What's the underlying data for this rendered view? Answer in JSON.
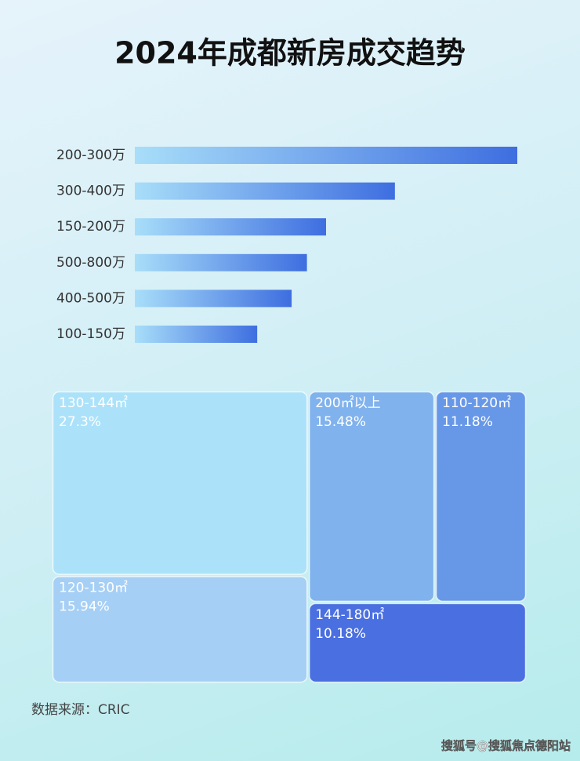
{
  "chart_data": [
    {
      "type": "bar",
      "orientation": "horizontal",
      "title": "2024年成都新房成交趋势",
      "categories": [
        "200-300万",
        "300-400万",
        "150-200万",
        "500-800万",
        "400-500万",
        "100-150万"
      ],
      "values": [
        100,
        68,
        50,
        45,
        41,
        32
      ],
      "color": [
        "#a8def9",
        "#3e6ee0"
      ]
    },
    {
      "type": "treemap",
      "categories": [
        "130-144㎡",
        "120-130㎡",
        "200㎡以上",
        "110-120㎡",
        "144-180㎡"
      ],
      "values": [
        27.3,
        15.94,
        15.48,
        11.18,
        10.18
      ],
      "value_labels": [
        "27.3%",
        "15.94%",
        "15.48%",
        "11.18%",
        "10.18%"
      ],
      "colors": [
        "#abe2fa",
        "#a6cff5",
        "#80b2ed",
        "#6797e7",
        "#4a6fe0"
      ]
    }
  ],
  "source": "数据来源：CRIC",
  "watermark": "搜狐号@搜狐焦点德阳站"
}
